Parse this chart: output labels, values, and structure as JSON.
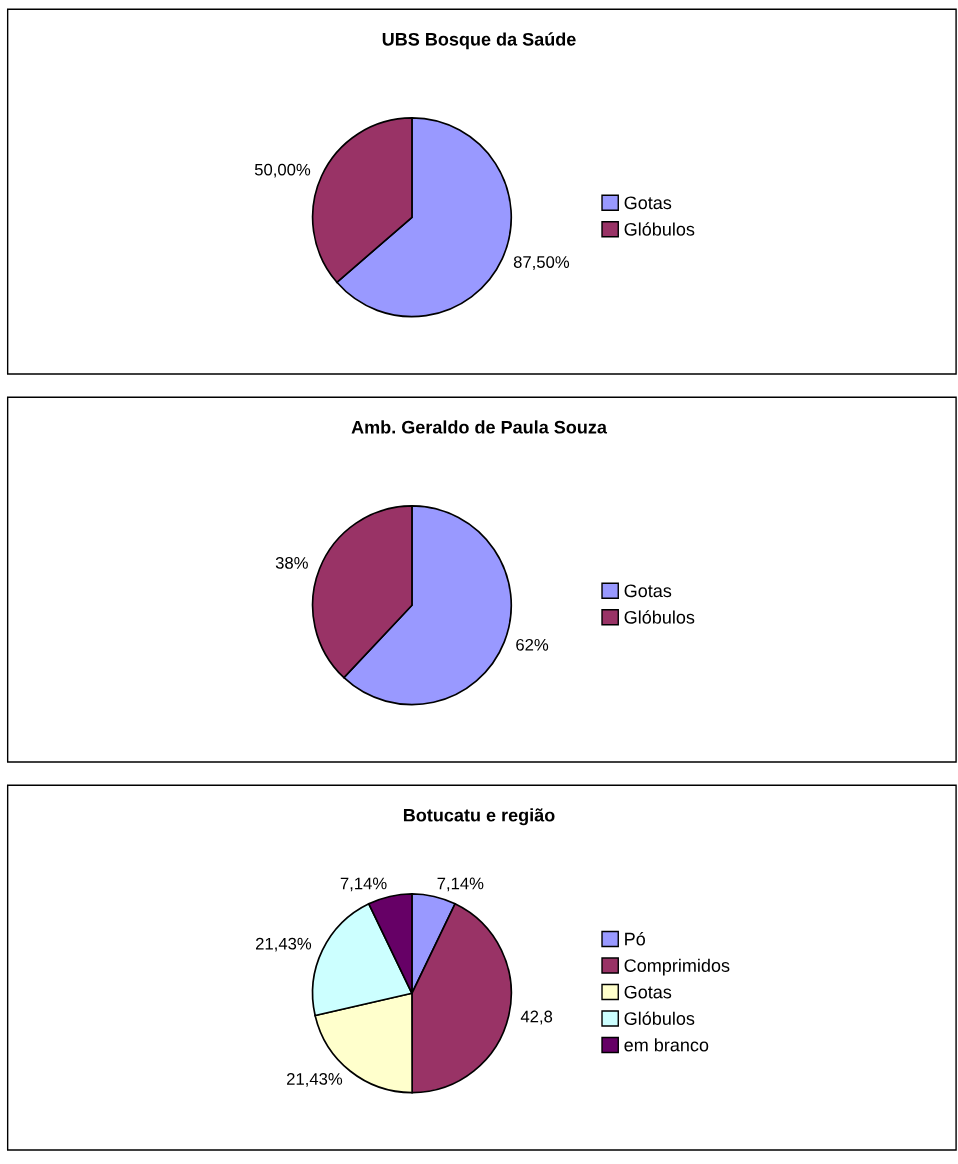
{
  "chart_data": [
    {
      "type": "pie",
      "title": "UBS Bosque da Saúde",
      "categories": [
        "Gotas",
        "Glóbulos"
      ],
      "values": [
        87.5,
        50.0
      ],
      "value_labels": [
        "87,50%",
        "50,00%"
      ],
      "colors": [
        "#9999ff",
        "#993366"
      ],
      "legend": "right"
    },
    {
      "type": "pie",
      "title": "Amb. Geraldo de Paula Souza",
      "categories": [
        "Gotas",
        "Glóbulos"
      ],
      "values": [
        62,
        38
      ],
      "value_labels": [
        "62%",
        "38%"
      ],
      "colors": [
        "#9999ff",
        "#993366"
      ],
      "legend": "right"
    },
    {
      "type": "pie",
      "title": "Botucatu e região",
      "categories": [
        "Pó",
        "Comprimidos",
        "Gotas",
        "Glóbulos",
        "em branco"
      ],
      "values": [
        7.14,
        42.8,
        21.43,
        21.43,
        7.14
      ],
      "value_labels": [
        "7,14%",
        "42,8",
        "21,43%",
        "21,43%",
        "7,14%"
      ],
      "colors": [
        "#9999ff",
        "#993366",
        "#ffffcc",
        "#ccffff",
        "#660066"
      ],
      "legend": "right"
    }
  ]
}
